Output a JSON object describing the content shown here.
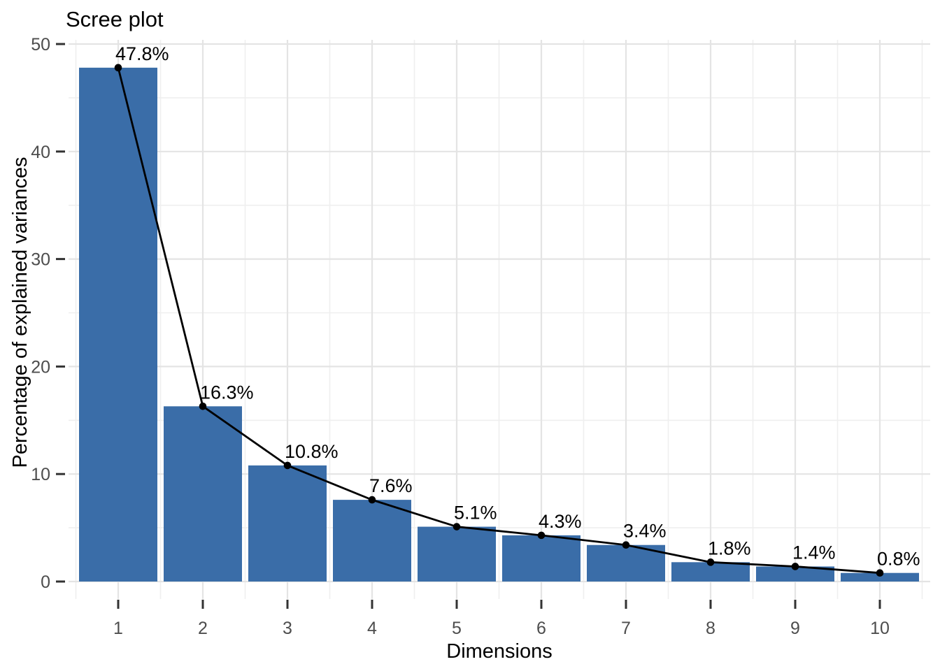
{
  "page": {
    "background": "#FFFFFF"
  },
  "chart_data": {
    "type": "bar",
    "combo": "bar+line+points+labels",
    "title": "Scree plot",
    "xlabel": "Dimensions",
    "ylabel": "Percentage of explained variances",
    "categories": [
      "1",
      "2",
      "3",
      "4",
      "5",
      "6",
      "7",
      "8",
      "9",
      "10"
    ],
    "values": [
      47.8,
      16.3,
      10.8,
      7.6,
      5.1,
      4.3,
      3.4,
      1.8,
      1.4,
      0.8
    ],
    "point_labels": [
      "47.8%",
      "16.3%",
      "10.8%",
      "7.6%",
      "5.1%",
      "4.3%",
      "3.4%",
      "1.8%",
      "1.4%",
      "0.8%"
    ],
    "ylim": [
      0,
      50
    ],
    "yticks": [
      0,
      10,
      20,
      30,
      40,
      50
    ],
    "yticks_minor": [
      5,
      15,
      25,
      35,
      45
    ],
    "grid": "major+minor",
    "legend": "none",
    "colors": {
      "bar": "#3A6DA8",
      "line": "#000000",
      "point": "#000000",
      "label_text": "#000000",
      "title_text": "#000000",
      "axis_title_text": "#000000",
      "tick_label_text": "#4D4D4D",
      "axis_tick": "#333333",
      "grid_major": "#E4E4E4",
      "grid_minor": "#EFEFEF",
      "background": "#FFFFFF"
    }
  }
}
